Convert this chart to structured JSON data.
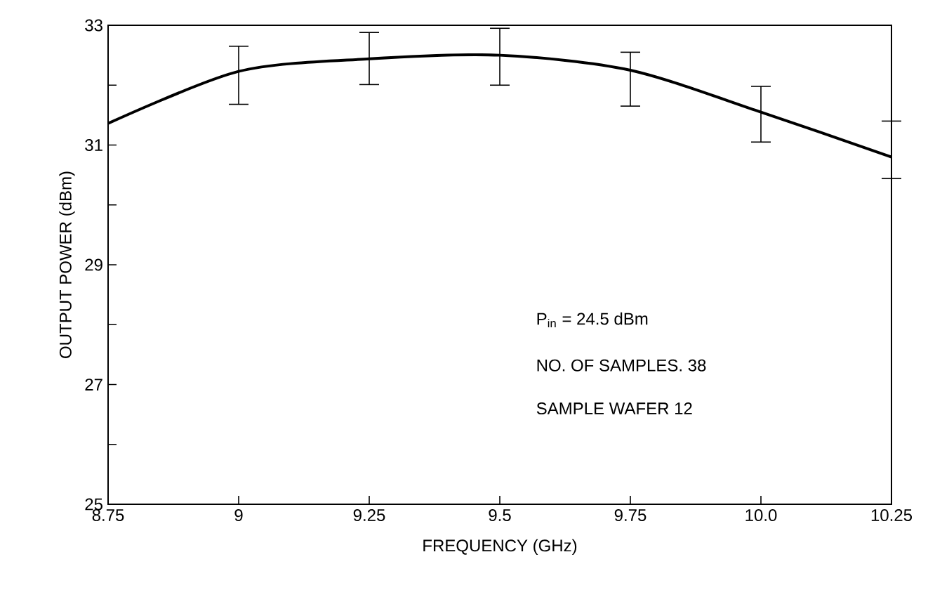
{
  "chart_data": {
    "type": "line",
    "xlabel": "FREQUENCY (GHz)",
    "ylabel": "OUTPUT POWER (dBm)",
    "x": [
      8.75,
      9.0,
      9.25,
      9.5,
      9.75,
      10.0,
      10.25
    ],
    "series": [
      {
        "color": "#000000",
        "values": [
          31.36,
          32.23,
          32.44,
          32.5,
          32.25,
          31.55,
          30.8
        ],
        "errors": [
          null,
          [
            31.68,
            32.65
          ],
          [
            32.01,
            32.88
          ],
          [
            32.0,
            32.95
          ],
          [
            31.65,
            32.55
          ],
          [
            31.05,
            31.98
          ],
          [
            30.44,
            31.4
          ]
        ]
      }
    ],
    "xlim": [
      8.75,
      10.25
    ],
    "xticks": [
      8.75,
      9,
      9.25,
      9.5,
      9.75,
      {
        "value": 10,
        "label": "10.0"
      },
      10.25
    ],
    "ylim": [
      25,
      33
    ],
    "yticks": [
      25,
      {
        "value": 26,
        "label": null
      },
      27,
      {
        "value": 28,
        "label": null
      },
      29,
      {
        "value": 30,
        "label": null
      },
      31,
      {
        "value": 32,
        "label": null
      },
      33
    ],
    "annotations": [
      "P$_{in}$ = 24.5 dBm",
      "NO. OF SAMPLES.  38",
      "SAMPLE WAFER   12"
    ]
  }
}
